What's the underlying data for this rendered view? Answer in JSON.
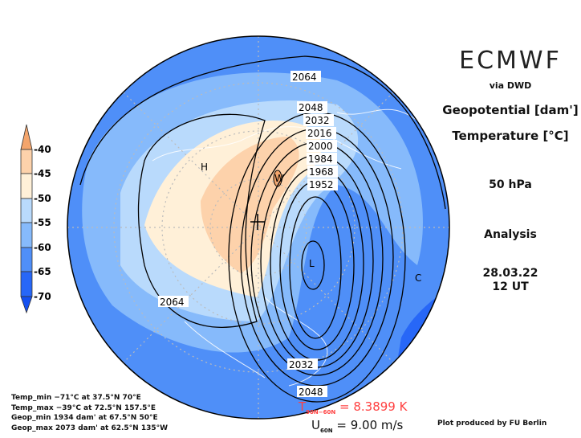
{
  "header": {
    "brand": "ECMWF",
    "source": "via DWD",
    "field1": "Geopotential [dam']",
    "field2": "Temperature [°C]",
    "level": "50 hPa",
    "type": "Analysis",
    "date": "28.03.22",
    "time": "12 UT"
  },
  "legend": {
    "labels": [
      "-40",
      "-45",
      "-50",
      "-55",
      "-60",
      "-65",
      "-70"
    ],
    "colors": {
      "above_-40": "#f4a56c",
      "-45_-40": "#fdd2ab",
      "-50_-45": "#fff0d8",
      "-55_-50": "#b9dafc",
      "-60_-55": "#86bafb",
      "-65_-60": "#4f8ff8",
      "-70_-65": "#2767f7",
      "below_-70": "#1450f0"
    }
  },
  "contour_labels": [
    "2064",
    "2048",
    "2032",
    "2016",
    "2000",
    "1984",
    "1968",
    "1952",
    "2064",
    "2032",
    "2048"
  ],
  "markers": {
    "high": "H",
    "low": "L",
    "cold": "C",
    "warm": "W"
  },
  "stats": [
    "Temp_min −71°C at 37.5°N 70°E",
    "Temp_max −39°C at 72.5°N 157.5°E",
    "Geop_min 1934 dam' at 67.5°N 50°E",
    "Geop_max 2073 dam' at 62.5°N 135°W"
  ],
  "indices": {
    "t_label": "T",
    "t_sub": "90N−60N",
    "t_value": "= 8.3899 K",
    "u_label": "U",
    "u_sub": "60N",
    "u_value": "= 9.00 m/s"
  },
  "credit": "Plot produced by FU Berlin"
}
